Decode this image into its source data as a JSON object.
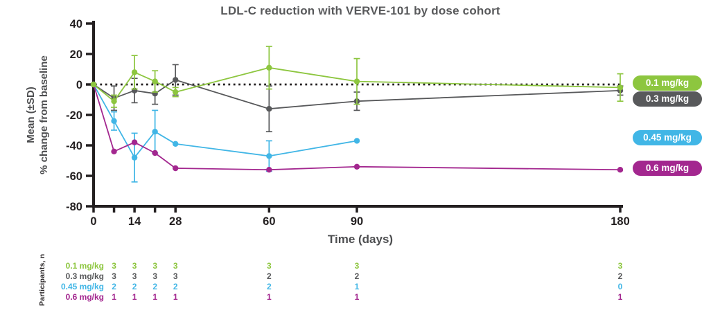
{
  "chart_data": {
    "type": "line",
    "title": "LDL-C reduction with VERVE-101 by dose cohort",
    "xlabel": "Time (days)",
    "ylabel_line1": "Mean (±SD)",
    "ylabel_line2": "% change from baseline",
    "x": [
      0,
      7,
      14,
      21,
      28,
      60,
      90,
      180
    ],
    "x_tick_labeled": [
      0,
      14,
      28,
      60,
      90,
      180
    ],
    "y_ticks": [
      40,
      20,
      0,
      -20,
      -40,
      -60,
      -80
    ],
    "ylim": [
      -80,
      40
    ],
    "xlim": [
      0,
      180
    ],
    "grid": "off",
    "zero_line_style": "dotted",
    "legend_position": "right",
    "series": [
      {
        "name": "0.1 mg/kg",
        "color": "#8dc63f",
        "mean": [
          0,
          -11,
          8,
          2,
          -5,
          11,
          2,
          -2
        ],
        "sd": [
          0,
          4,
          11,
          7,
          3,
          14,
          15,
          9
        ]
      },
      {
        "name": "0.3 mg/kg",
        "color": "#58595b",
        "mean": [
          0,
          -9,
          -4,
          -6,
          3,
          -16,
          -11,
          -4
        ],
        "sd": [
          0,
          8,
          8,
          7,
          10,
          15,
          6,
          3
        ]
      },
      {
        "name": "0.45 mg/kg",
        "color": "#41b6e6",
        "mean": [
          0,
          -24,
          -48,
          -31,
          -39,
          -47,
          -37,
          null
        ],
        "sd": [
          0,
          6,
          16,
          14,
          0,
          10,
          0,
          null
        ]
      },
      {
        "name": "0.6 mg/kg",
        "color": "#a3278f",
        "mean": [
          0,
          -44,
          -38,
          -45,
          -55,
          -56,
          -54,
          -56
        ],
        "sd": [
          0,
          0,
          0,
          0,
          0,
          0,
          0,
          0
        ]
      }
    ],
    "participants_table": {
      "row_header": "Participants, n",
      "column_days": [
        7,
        14,
        21,
        28,
        60,
        90,
        180
      ],
      "rows": [
        {
          "label": "0.1 mg/kg",
          "color": "#8dc63f",
          "counts": [
            3,
            3,
            3,
            3,
            3,
            3,
            3
          ]
        },
        {
          "label": "0.3 mg/kg",
          "color": "#58595b",
          "counts": [
            3,
            3,
            3,
            3,
            2,
            2,
            2
          ]
        },
        {
          "label": "0.45 mg/kg",
          "color": "#41b6e6",
          "counts": [
            2,
            2,
            2,
            2,
            2,
            1,
            0
          ]
        },
        {
          "label": "0.6 mg/kg",
          "color": "#a3278f",
          "counts": [
            1,
            1,
            1,
            1,
            1,
            1,
            1
          ]
        }
      ]
    }
  }
}
